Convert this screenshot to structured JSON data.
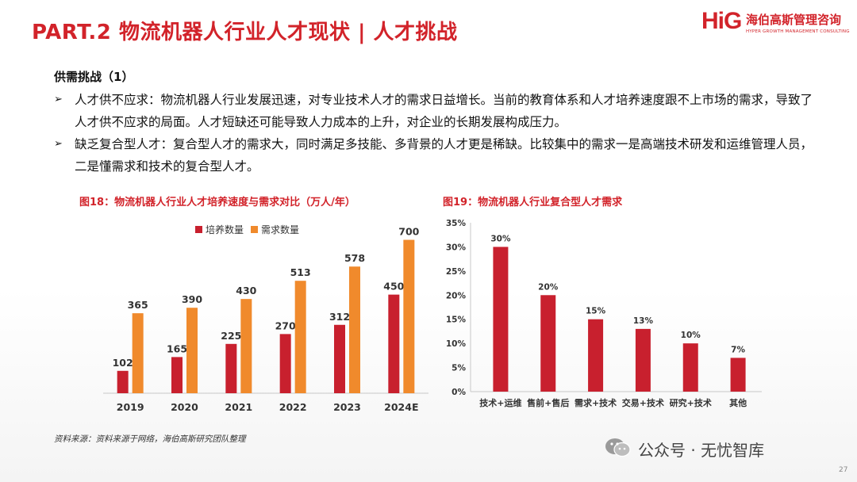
{
  "header": {
    "title": "PART.2 物流机器人行业人才现状 | 人才挑战",
    "logo_mark": "HiG",
    "logo_cn": "海伯高斯管理咨询",
    "logo_en": "HYPER GROWTH MANAGEMENT CONSULTING"
  },
  "section": {
    "title": "供需挑战（1）",
    "bullets": [
      {
        "text": "人才供不应求：物流机器人行业发展迅速，对专业技术人才的需求日益增长。当前的教育体系和人才培养速度跟不上市场的需求，导致了人才供不应求的局面。人才短缺还可能导致人力成本的上升，对企业的长期发展构成压力。"
      },
      {
        "text": "缺乏复合型人才：复合型人才的需求大，同时满足多技能、多背景的人才更是稀缺。比较集中的需求一是高端技术研发和运维管理人员，二是懂需求和技术的复合型人才。"
      }
    ],
    "bullet_marker": "➢"
  },
  "figure1": {
    "title": "图18：物流机器人行业人才培养速度与需求对比（万人/年）"
  },
  "figure2": {
    "title": "图19：物流机器人行业复合型人才需求"
  },
  "chart_data": [
    {
      "type": "bar",
      "title": "图18：物流机器人行业人才培养速度与需求对比（万人/年）",
      "categories": [
        "2019",
        "2020",
        "2021",
        "2022",
        "2023",
        "2024E"
      ],
      "series": [
        {
          "name": "培养数量",
          "values": [
            102,
            165,
            225,
            270,
            312,
            450
          ],
          "color": "#c8202e"
        },
        {
          "name": "需求数量",
          "values": [
            365,
            390,
            430,
            513,
            578,
            700
          ],
          "color": "#f08a2c"
        }
      ],
      "ylim": [
        0,
        720
      ],
      "legend": "top-left"
    },
    {
      "type": "bar",
      "title": "图19：物流机器人行业复合型人才需求",
      "categories": [
        "技术+运维",
        "售前+售后",
        "需求+技术",
        "交易+技术",
        "研究+技术",
        "其他"
      ],
      "values": [
        30,
        20,
        15,
        13,
        10,
        7
      ],
      "value_labels": [
        "30%",
        "20%",
        "15%",
        "13%",
        "10%",
        "7%"
      ],
      "yticks": [
        "0%",
        "5%",
        "10%",
        "15%",
        "20%",
        "25%",
        "30%",
        "35%"
      ],
      "ylim": [
        0,
        35
      ],
      "color": "#c8202e"
    }
  ],
  "source": "资料来源：资料来源于网络，海伯高斯研究团队整理",
  "watermark": "公众号 · 无忧智库",
  "page_number": "27"
}
